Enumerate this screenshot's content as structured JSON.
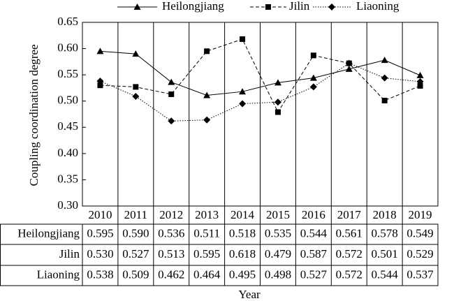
{
  "chart_data": {
    "type": "line",
    "y_label": "Coupling coordination degree",
    "x_label": "Year",
    "categories": [
      "2010",
      "2011",
      "2012",
      "2013",
      "2014",
      "2015",
      "2016",
      "2017",
      "2018",
      "2019"
    ],
    "ylim": [
      0.3,
      0.65
    ],
    "yticks": [
      {
        "value": 0.3,
        "label": "0.30"
      },
      {
        "value": 0.35,
        "label": "0.35"
      },
      {
        "value": 0.4,
        "label": "0.40"
      },
      {
        "value": 0.45,
        "label": "0.45"
      },
      {
        "value": 0.5,
        "label": "0.50"
      },
      {
        "value": 0.55,
        "label": "0.55"
      },
      {
        "value": 0.6,
        "label": "0.60"
      },
      {
        "value": 0.65,
        "label": "0.65"
      }
    ],
    "legend": "top",
    "series": [
      {
        "name": "Heilongjiang",
        "color": "#000000",
        "marker": "triangle",
        "line_style": "solid",
        "values": [
          0.595,
          0.59,
          0.536,
          0.511,
          0.518,
          0.535,
          0.544,
          0.561,
          0.578,
          0.549
        ],
        "value_labels": [
          "0.595",
          "0.590",
          "0.536",
          "0.511",
          "0.518",
          "0.535",
          "0.544",
          "0.561",
          "0.578",
          "0.549"
        ]
      },
      {
        "name": "Jilin",
        "color": "#000000",
        "marker": "square",
        "line_style": "dashed",
        "values": [
          0.53,
          0.527,
          0.513,
          0.595,
          0.618,
          0.479,
          0.587,
          0.572,
          0.501,
          0.529
        ],
        "value_labels": [
          "0.530",
          "0.527",
          "0.513",
          "0.595",
          "0.618",
          "0.479",
          "0.587",
          "0.572",
          "0.501",
          "0.529"
        ]
      },
      {
        "name": "Liaoning",
        "color": "#000000",
        "marker": "diamond",
        "line_style": "dotted",
        "values": [
          0.538,
          0.509,
          0.462,
          0.464,
          0.495,
          0.498,
          0.527,
          0.572,
          0.544,
          0.537
        ],
        "value_labels": [
          "0.538",
          "0.509",
          "0.462",
          "0.464",
          "0.495",
          "0.498",
          "0.527",
          "0.572",
          "0.544",
          "0.537"
        ]
      }
    ]
  }
}
